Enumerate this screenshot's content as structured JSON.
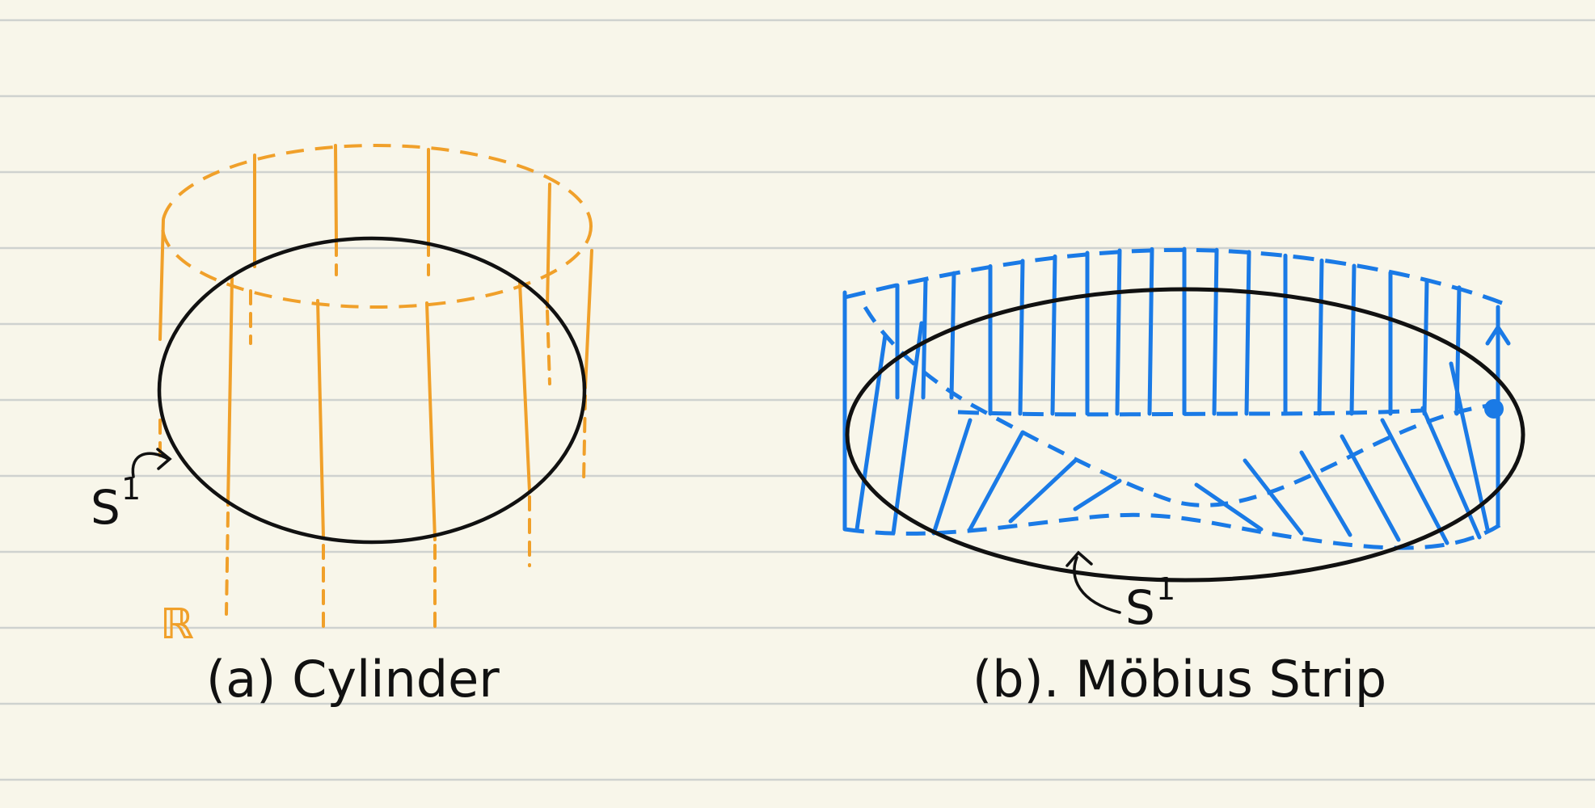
{
  "colors": {
    "paper": "#f8f6ea",
    "rule_lines": "#cfd2cf",
    "ink": "#111111",
    "cylinder": "#f0a02a",
    "mobius": "#1a7ae6"
  },
  "cylinder": {
    "caption": "(a) Cylinder",
    "base_label": "S",
    "base_label_sup": "1",
    "fiber_label": "ℝ"
  },
  "mobius": {
    "caption": "(b). Möbius Strip",
    "base_label": "S",
    "base_label_sup": "1"
  }
}
